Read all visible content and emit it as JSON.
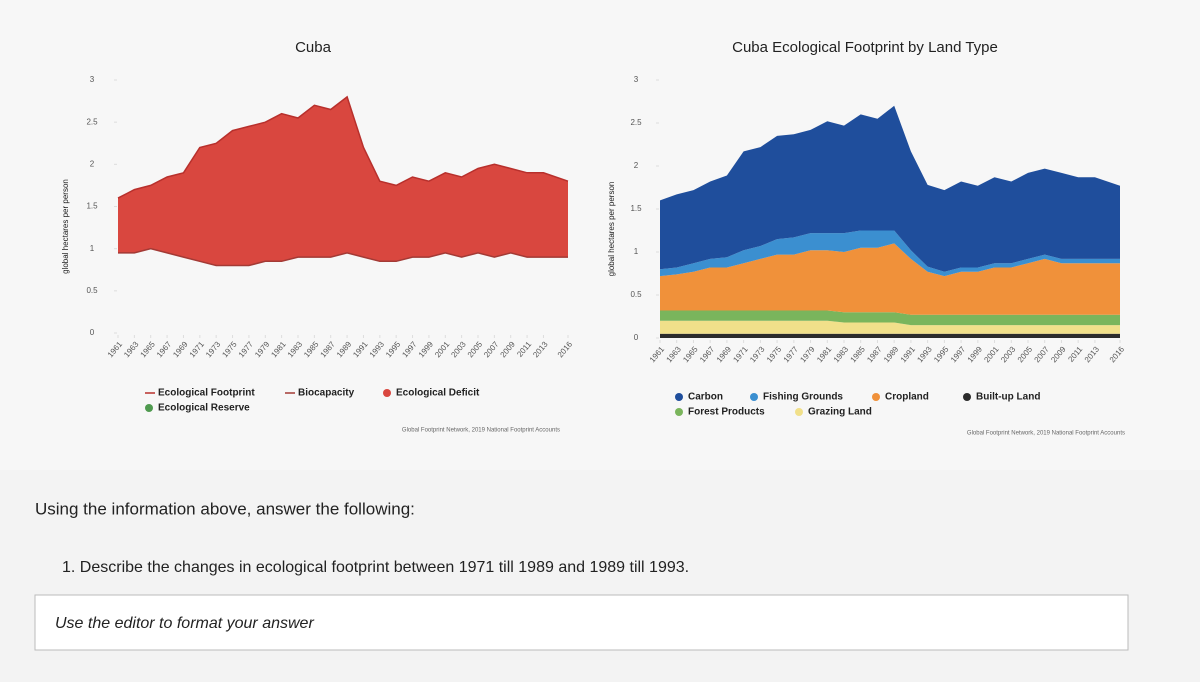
{
  "chart_data": [
    {
      "type": "area",
      "title": "Cuba",
      "y_label": "global hectares per person",
      "source": "Global Footprint Network, 2019 National Footprint Accounts",
      "x": [
        1961,
        1963,
        1965,
        1967,
        1969,
        1971,
        1973,
        1975,
        1977,
        1979,
        1981,
        1983,
        1985,
        1987,
        1989,
        1991,
        1993,
        1995,
        1997,
        1999,
        2001,
        2003,
        2005,
        2007,
        2009,
        2011,
        2013,
        2016
      ],
      "xlim": [
        1961,
        2016
      ],
      "xticks": [
        1961,
        1963,
        1965,
        1967,
        1969,
        1971,
        1973,
        1975,
        1977,
        1979,
        1981,
        1983,
        1985,
        1987,
        1989,
        1991,
        1993,
        1995,
        1997,
        1999,
        2001,
        2003,
        2005,
        2007,
        2009,
        2011,
        2013,
        2016
      ],
      "ylim": [
        0,
        3
      ],
      "yticks": [
        0,
        0.5,
        1,
        1.5,
        2,
        2.5,
        3
      ],
      "series": [
        {
          "name": "Ecological Footprint",
          "color": "#b8302c",
          "values": [
            1.6,
            1.7,
            1.75,
            1.85,
            1.9,
            2.2,
            2.25,
            2.4,
            2.45,
            2.5,
            2.6,
            2.55,
            2.7,
            2.65,
            2.8,
            2.2,
            1.8,
            1.75,
            1.85,
            1.8,
            1.9,
            1.85,
            1.95,
            2.0,
            1.95,
            1.9,
            1.9,
            1.8
          ]
        },
        {
          "name": "Biocapacity",
          "color": "#a33a35",
          "values": [
            0.95,
            0.95,
            1.0,
            0.95,
            0.9,
            0.85,
            0.8,
            0.8,
            0.8,
            0.85,
            0.85,
            0.9,
            0.9,
            0.9,
            0.95,
            0.9,
            0.85,
            0.85,
            0.9,
            0.9,
            0.95,
            0.9,
            0.95,
            0.9,
            0.95,
            0.9,
            0.9,
            0.9
          ]
        }
      ],
      "fills": [
        {
          "name": "Ecological Deficit",
          "color": "#d9473f"
        },
        {
          "name": "Ecological Reserve",
          "color": "#4f9a4f"
        }
      ]
    },
    {
      "type": "stacked_area",
      "title": "Cuba Ecological Footprint by Land Type",
      "y_label": "global hectares per person",
      "source": "Global Footprint Network, 2019 National Footprint Accounts",
      "x": [
        1961,
        1963,
        1965,
        1967,
        1969,
        1971,
        1973,
        1975,
        1977,
        1979,
        1981,
        1983,
        1985,
        1987,
        1989,
        1991,
        1993,
        1995,
        1997,
        1999,
        2001,
        2003,
        2005,
        2007,
        2009,
        2011,
        2013,
        2016
      ],
      "xlim": [
        1961,
        2016
      ],
      "xticks": [
        1961,
        1963,
        1965,
        1967,
        1969,
        1971,
        1973,
        1975,
        1977,
        1979,
        1981,
        1983,
        1985,
        1987,
        1989,
        1991,
        1993,
        1995,
        1997,
        1999,
        2001,
        2003,
        2005,
        2007,
        2009,
        2011,
        2013,
        2016
      ],
      "ylim": [
        0,
        3
      ],
      "yticks": [
        0,
        0.5,
        1,
        1.5,
        2,
        2.5,
        3
      ],
      "series": [
        {
          "name": "Built-up Land",
          "color": "#2b2b2b",
          "values": [
            0.05,
            0.05,
            0.05,
            0.05,
            0.05,
            0.05,
            0.05,
            0.05,
            0.05,
            0.05,
            0.05,
            0.05,
            0.05,
            0.05,
            0.05,
            0.05,
            0.05,
            0.05,
            0.05,
            0.05,
            0.05,
            0.05,
            0.05,
            0.05,
            0.05,
            0.05,
            0.05,
            0.05
          ]
        },
        {
          "name": "Grazing Land",
          "color": "#f1e08a",
          "values": [
            0.15,
            0.15,
            0.15,
            0.15,
            0.15,
            0.15,
            0.15,
            0.15,
            0.15,
            0.15,
            0.15,
            0.13,
            0.13,
            0.13,
            0.13,
            0.1,
            0.1,
            0.1,
            0.1,
            0.1,
            0.1,
            0.1,
            0.1,
            0.1,
            0.1,
            0.1,
            0.1,
            0.1
          ]
        },
        {
          "name": "Forest Products",
          "color": "#7ab55c",
          "values": [
            0.12,
            0.12,
            0.12,
            0.12,
            0.12,
            0.12,
            0.12,
            0.12,
            0.12,
            0.12,
            0.12,
            0.12,
            0.12,
            0.12,
            0.12,
            0.12,
            0.12,
            0.12,
            0.12,
            0.12,
            0.12,
            0.12,
            0.12,
            0.12,
            0.12,
            0.12,
            0.12,
            0.12
          ]
        },
        {
          "name": "Cropland",
          "color": "#f0913a",
          "values": [
            0.4,
            0.42,
            0.45,
            0.5,
            0.5,
            0.55,
            0.6,
            0.65,
            0.65,
            0.7,
            0.7,
            0.7,
            0.75,
            0.75,
            0.8,
            0.65,
            0.5,
            0.45,
            0.5,
            0.5,
            0.55,
            0.55,
            0.6,
            0.65,
            0.6,
            0.6,
            0.6,
            0.6
          ]
        },
        {
          "name": "Fishing Grounds",
          "color": "#3b8fd0",
          "values": [
            0.08,
            0.08,
            0.1,
            0.1,
            0.12,
            0.15,
            0.15,
            0.18,
            0.2,
            0.2,
            0.2,
            0.22,
            0.2,
            0.2,
            0.15,
            0.1,
            0.06,
            0.05,
            0.05,
            0.05,
            0.05,
            0.05,
            0.05,
            0.05,
            0.05,
            0.05,
            0.05,
            0.05
          ]
        },
        {
          "name": "Carbon",
          "color": "#1f4e9c",
          "values": [
            0.8,
            0.85,
            0.85,
            0.9,
            0.95,
            1.15,
            1.15,
            1.2,
            1.2,
            1.2,
            1.3,
            1.25,
            1.35,
            1.3,
            1.45,
            1.15,
            0.95,
            0.95,
            1.0,
            0.95,
            1.0,
            0.95,
            1.0,
            1.0,
            1.0,
            0.95,
            0.95,
            0.85
          ]
        }
      ]
    }
  ],
  "page": {
    "intro": "Using the information above, answer the following:",
    "question": "1. Describe the changes in ecological footprint between 1971 till 1989 and 1989 till 1993.",
    "editor_placeholder": "Use the editor to format your answer"
  }
}
